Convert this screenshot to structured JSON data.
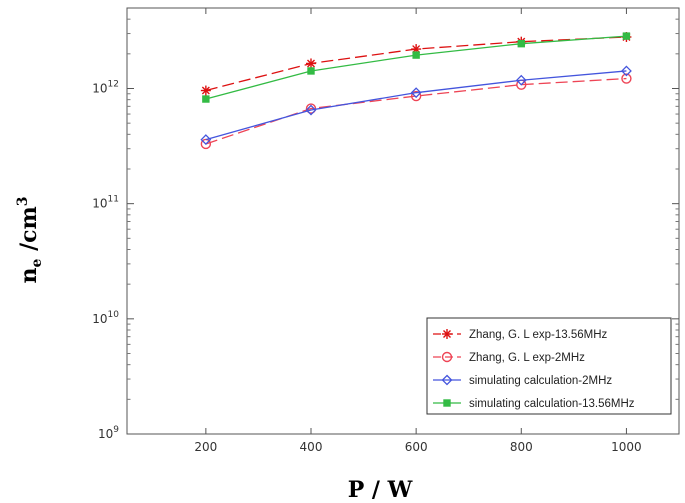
{
  "chart_data": {
    "type": "line",
    "xlabel": "P / W",
    "ylabel_main": "n",
    "ylabel_sub": "e",
    "ylabel_unit": " /cm",
    "ylabel_sup": "3",
    "x_ticks": [
      200,
      400,
      600,
      800,
      1000
    ],
    "xlim": [
      50,
      1100
    ],
    "y_scale": "log",
    "ylim": [
      1000000000.0,
      5000000000000.0
    ],
    "y_ticks": [
      {
        "value": 1000000000.0,
        "base": "10",
        "exp": "9"
      },
      {
        "value": 10000000000.0,
        "base": "10",
        "exp": "10"
      },
      {
        "value": 100000000000.0,
        "base": "10",
        "exp": "11"
      },
      {
        "value": 1000000000000.0,
        "base": "10",
        "exp": "12"
      }
    ],
    "grid": false,
    "legend_position": "bottom-right",
    "series": [
      {
        "name": "Zhang, G. L exp-13.56MHz",
        "color": "#dd1111",
        "dash": "dashed",
        "marker": "star",
        "x": [
          200,
          400,
          600,
          800,
          1000
        ],
        "y": [
          960000000000.0,
          1650000000000.0,
          2200000000000.0,
          2550000000000.0,
          2800000000000.0
        ]
      },
      {
        "name": "Zhang, G. L exp-2MHz",
        "color": "#ee4455",
        "dash": "dashed",
        "marker": "circle",
        "x": [
          200,
          400,
          600,
          800,
          1000
        ],
        "y": [
          330000000000.0,
          670000000000.0,
          860000000000.0,
          1080000000000.0,
          1220000000000.0
        ]
      },
      {
        "name": "simulating calculation-2MHz",
        "color": "#4455dd",
        "dash": "solid",
        "marker": "diamond",
        "x": [
          200,
          400,
          600,
          800,
          1000
        ],
        "y": [
          360000000000.0,
          650000000000.0,
          920000000000.0,
          1180000000000.0,
          1420000000000.0
        ]
      },
      {
        "name": "simulating calculation-13.56MHz",
        "color": "#33bb44",
        "dash": "solid",
        "marker": "square",
        "x": [
          200,
          400,
          600,
          800,
          1000
        ],
        "y": [
          810000000000.0,
          1420000000000.0,
          1950000000000.0,
          2450000000000.0,
          2850000000000.0
        ]
      }
    ]
  }
}
